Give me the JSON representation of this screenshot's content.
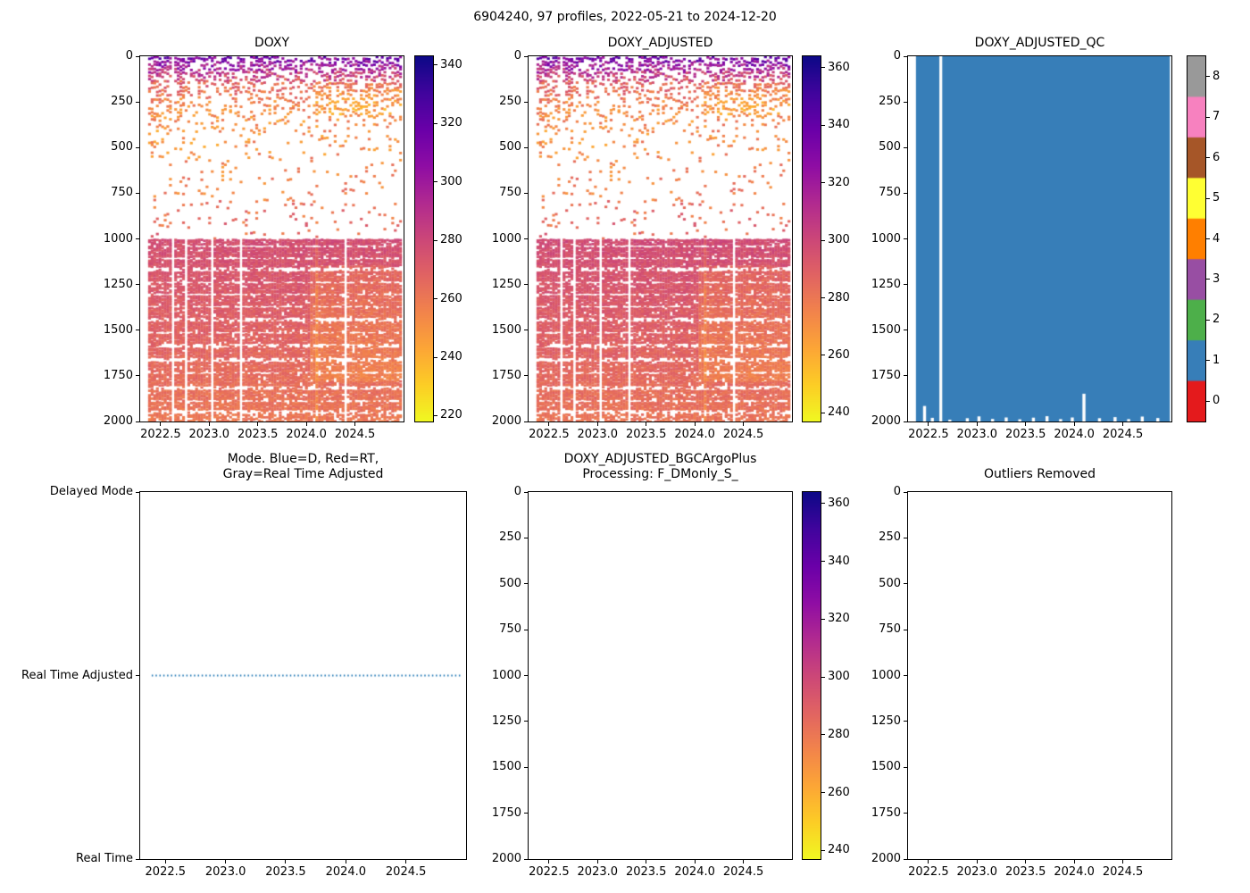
{
  "figure": {
    "title": "6904240, 97 profiles, 2022-05-21 to 2024-12-20",
    "background": "#ffffff"
  },
  "chart_data": [
    {
      "id": "doxy",
      "type": "scatter-heatmap",
      "title": "DOXY",
      "x": {
        "min": 2022.29,
        "max": 2025.0,
        "tick_values": [
          2022.5,
          2023.0,
          2023.5,
          2024.0,
          2024.5
        ],
        "tick_labels": [
          "2022.5",
          "2023.0",
          "2023.5",
          "2024.0",
          "2024.5"
        ]
      },
      "y": {
        "min": 0,
        "max": 2000,
        "inverted": true,
        "tick_values": [
          0,
          250,
          500,
          750,
          1000,
          1250,
          1500,
          1750,
          2000
        ]
      },
      "colorbar": {
        "vmin": 218,
        "vmax": 343,
        "tick_values": [
          220,
          240,
          260,
          280,
          300,
          320,
          340
        ],
        "colormap": "plasma_r"
      },
      "series": {
        "n_profiles": 97,
        "time_start": 2022.386,
        "time_end": 2024.969,
        "value_offset": 0,
        "depth_value_curve": [
          [
            0,
            316
          ],
          [
            50,
            302
          ],
          [
            100,
            284
          ],
          [
            160,
            268
          ],
          [
            220,
            259
          ],
          [
            300,
            253
          ],
          [
            450,
            251
          ],
          [
            650,
            255
          ],
          [
            850,
            261
          ],
          [
            999,
            267
          ]
        ],
        "density_curve": [
          [
            0,
            0.65
          ],
          [
            100,
            0.55
          ],
          [
            200,
            0.4
          ],
          [
            300,
            0.25
          ],
          [
            420,
            0.14
          ],
          [
            600,
            0.08
          ],
          [
            999,
            0.07
          ]
        ],
        "deep_value_start": 277.5,
        "deep_value_end": 260.5,
        "deep_density": 0.94,
        "deep_gap_depths": [
          1040,
          1105,
          1170,
          1240,
          1305,
          1370,
          1440,
          1515,
          1585,
          1660,
          1735,
          1815,
          1890,
          1950
        ],
        "missing_profiles": [
          9
        ],
        "missing_deep_profiles": [
          9,
          14,
          24,
          35,
          75
        ],
        "late_warm_patch": {
          "t_start": 2024.05,
          "z_min": 1150,
          "z_max": 1780,
          "delta": -7.5
        },
        "upper_warm_patch": {
          "t_start": 2024.08,
          "z_min": 140,
          "z_max": 320,
          "delta": -8
        }
      }
    },
    {
      "id": "adjusted",
      "type": "scatter-heatmap",
      "title": "DOXY_ADJUSTED",
      "x": {
        "min": 2022.29,
        "max": 2025.0,
        "tick_values": [
          2022.5,
          2023.0,
          2023.5,
          2024.0,
          2024.5
        ],
        "tick_labels": [
          "2022.5",
          "2023.0",
          "2023.5",
          "2024.0",
          "2024.5"
        ]
      },
      "y": {
        "min": 0,
        "max": 2000,
        "inverted": true,
        "tick_values": [
          0,
          250,
          500,
          750,
          1000,
          1250,
          1500,
          1750,
          2000
        ]
      },
      "colorbar": {
        "vmin": 237,
        "vmax": 364,
        "tick_values": [
          240,
          260,
          280,
          300,
          320,
          340,
          360
        ],
        "colormap": "plasma_r"
      },
      "series": {
        "same_as": "doxy",
        "value_offset": 21
      }
    },
    {
      "id": "qc",
      "type": "qc-map",
      "title": "DOXY_ADJUSTED_QC",
      "x": {
        "min": 2022.29,
        "max": 2025.0,
        "tick_values": [
          2022.5,
          2023.0,
          2023.5,
          2024.0,
          2024.5
        ],
        "tick_labels": [
          "2022.5",
          "2023.0",
          "2023.5",
          "2024.0",
          "2024.5"
        ]
      },
      "y": {
        "min": 0,
        "max": 2000,
        "inverted": true,
        "tick_values": [
          0,
          250,
          500,
          750,
          1000,
          1250,
          1500,
          1750,
          2000
        ]
      },
      "colorbar": {
        "type": "discrete",
        "tick_values": [
          0,
          1,
          2,
          3,
          4,
          5,
          6,
          7,
          8
        ],
        "colors": [
          "#e41a1c",
          "#377eb8",
          "#4daf4a",
          "#984ea3",
          "#ff7f00",
          "#ffff33",
          "#a65628",
          "#f781bf",
          "#999999"
        ]
      },
      "qc": {
        "fill_value": 1,
        "fill_color": "#377eb8",
        "time_start": 2022.386,
        "time_end": 2024.969,
        "missing_profile_times": [
          2022.627
        ],
        "bottom_notches": [
          [
            2022.46,
            1915
          ],
          [
            2022.54,
            1980
          ],
          [
            2022.72,
            1990
          ],
          [
            2022.9,
            1982
          ],
          [
            2023.02,
            1972
          ],
          [
            2023.16,
            1986
          ],
          [
            2023.3,
            1978
          ],
          [
            2023.44,
            1988
          ],
          [
            2023.58,
            1979
          ],
          [
            2023.72,
            1971
          ],
          [
            2023.86,
            1987
          ],
          [
            2023.98,
            1978
          ],
          [
            2024.1,
            1848
          ],
          [
            2024.26,
            1982
          ],
          [
            2024.42,
            1976
          ],
          [
            2024.56,
            1987
          ],
          [
            2024.7,
            1973
          ],
          [
            2024.86,
            1981
          ]
        ]
      }
    },
    {
      "id": "mode",
      "type": "category-line",
      "title_lines": [
        "Mode. Blue=D, Red=RT,",
        "Gray=Real Time Adjusted"
      ],
      "x": {
        "min": 2022.29,
        "max": 2025.0,
        "tick_values": [
          2022.5,
          2023.0,
          2023.5,
          2024.0,
          2024.5
        ],
        "tick_labels": [
          "2022.5",
          "2023.0",
          "2023.5",
          "2024.0",
          "2024.5"
        ]
      },
      "y": {
        "categories": [
          "Real Time",
          "Real Time Adjusted",
          "Delayed Mode"
        ]
      },
      "line": {
        "name": "mode_flag",
        "category": "Real Time Adjusted",
        "style": "dotted",
        "color": "#1f77b4",
        "x_start": 2022.386,
        "x_end": 2024.969
      }
    },
    {
      "id": "bgc",
      "type": "empty-axes",
      "title_lines": [
        "DOXY_ADJUSTED_BGCArgoPlus",
        "Processing: F_DMonly_S_"
      ],
      "x": {
        "min": 2022.29,
        "max": 2025.0,
        "tick_values": [
          2022.5,
          2023.0,
          2023.5,
          2024.0,
          2024.5
        ],
        "tick_labels": [
          "2022.5",
          "2023.0",
          "2023.5",
          "2024.0",
          "2024.5"
        ]
      },
      "y": {
        "min": 0,
        "max": 2000,
        "inverted": true,
        "tick_values": [
          0,
          250,
          500,
          750,
          1000,
          1250,
          1500,
          1750,
          2000
        ]
      },
      "colorbar": {
        "vmin": 237,
        "vmax": 364,
        "tick_values": [
          240,
          260,
          280,
          300,
          320,
          340,
          360
        ],
        "colormap": "plasma_r"
      }
    },
    {
      "id": "outliers",
      "type": "empty-axes",
      "title": "Outliers Removed",
      "x": {
        "min": 2022.29,
        "max": 2025.0,
        "tick_values": [
          2022.5,
          2023.0,
          2023.5,
          2024.0,
          2024.5
        ],
        "tick_labels": [
          "2022.5",
          "2023.0",
          "2023.5",
          "2024.0",
          "2024.5"
        ]
      },
      "y": {
        "min": 0,
        "max": 2000,
        "inverted": true,
        "tick_values": [
          0,
          250,
          500,
          750,
          1000,
          1250,
          1500,
          1750,
          2000
        ]
      }
    }
  ]
}
